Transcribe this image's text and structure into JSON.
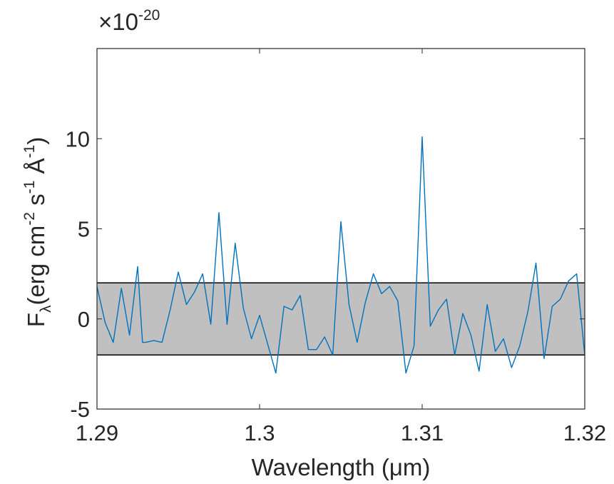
{
  "chart_data": {
    "type": "line",
    "xlabel": {
      "prefix": "Wavelength (",
      "symbol": "μ",
      "suffix": "m)"
    },
    "ylabel": {
      "symbol": "F",
      "subscript": "λ",
      "open": "(erg cm",
      "exp_cm": "-2",
      "s_unit": " s",
      "exp_s": "-1",
      "angstrom": " Å",
      "exp_A": "-1",
      "close": ")"
    },
    "exponent_label": {
      "prefix": "×10",
      "exponent": "-20"
    },
    "xlim": [
      1.29,
      1.32
    ],
    "ylim": [
      -5,
      15
    ],
    "x_ticks": [
      1.29,
      1.3,
      1.31,
      1.32
    ],
    "x_tick_labels": [
      "1.29",
      "1.3",
      "1.31",
      "1.32"
    ],
    "y_ticks": [
      -5,
      0,
      5,
      10
    ],
    "y_tick_labels": [
      "-5",
      "0",
      "5",
      "10"
    ],
    "grid": false,
    "band": {
      "y_low": -2.0,
      "y_high": 2.0,
      "fill": "#c0c0c0",
      "edge": "#000000"
    },
    "series": [
      {
        "color": "#0072bd",
        "x": [
          1.29,
          1.2905,
          1.291,
          1.2915,
          1.292,
          1.2925,
          1.2928,
          1.293,
          1.2935,
          1.294,
          1.2945,
          1.295,
          1.2955,
          1.296,
          1.2965,
          1.297,
          1.2975,
          1.298,
          1.2985,
          1.299,
          1.2995,
          1.3,
          1.3005,
          1.301,
          1.3015,
          1.302,
          1.3025,
          1.303,
          1.3035,
          1.304,
          1.3045,
          1.305,
          1.3055,
          1.306,
          1.3065,
          1.307,
          1.3075,
          1.308,
          1.3085,
          1.309,
          1.3095,
          1.31,
          1.3105,
          1.311,
          1.3115,
          1.312,
          1.3125,
          1.313,
          1.3135,
          1.314,
          1.3145,
          1.315,
          1.3155,
          1.316,
          1.3165,
          1.317,
          1.3175,
          1.318,
          1.3185,
          1.319,
          1.3195,
          1.32
        ],
        "y": [
          1.8,
          -0.2,
          -1.3,
          1.7,
          -0.9,
          2.9,
          -1.3,
          -1.3,
          -1.2,
          -1.3,
          0.5,
          2.6,
          0.8,
          1.5,
          2.5,
          -0.3,
          5.9,
          -0.3,
          4.2,
          0.6,
          -1.1,
          0.2,
          -1.4,
          -3.0,
          0.7,
          0.5,
          1.3,
          -1.7,
          -1.7,
          -1.0,
          -2.0,
          5.4,
          0.8,
          -1.3,
          0.9,
          2.5,
          1.4,
          1.8,
          1.0,
          -3.0,
          -1.5,
          10.1,
          -0.4,
          0.5,
          1.1,
          -2.0,
          0.3,
          -0.9,
          -2.9,
          0.8,
          -1.8,
          -1.1,
          -2.7,
          -1.5,
          0.4,
          3.1,
          -2.2,
          0.7,
          1.1,
          2.1,
          2.5,
          -2.0
        ]
      }
    ]
  }
}
